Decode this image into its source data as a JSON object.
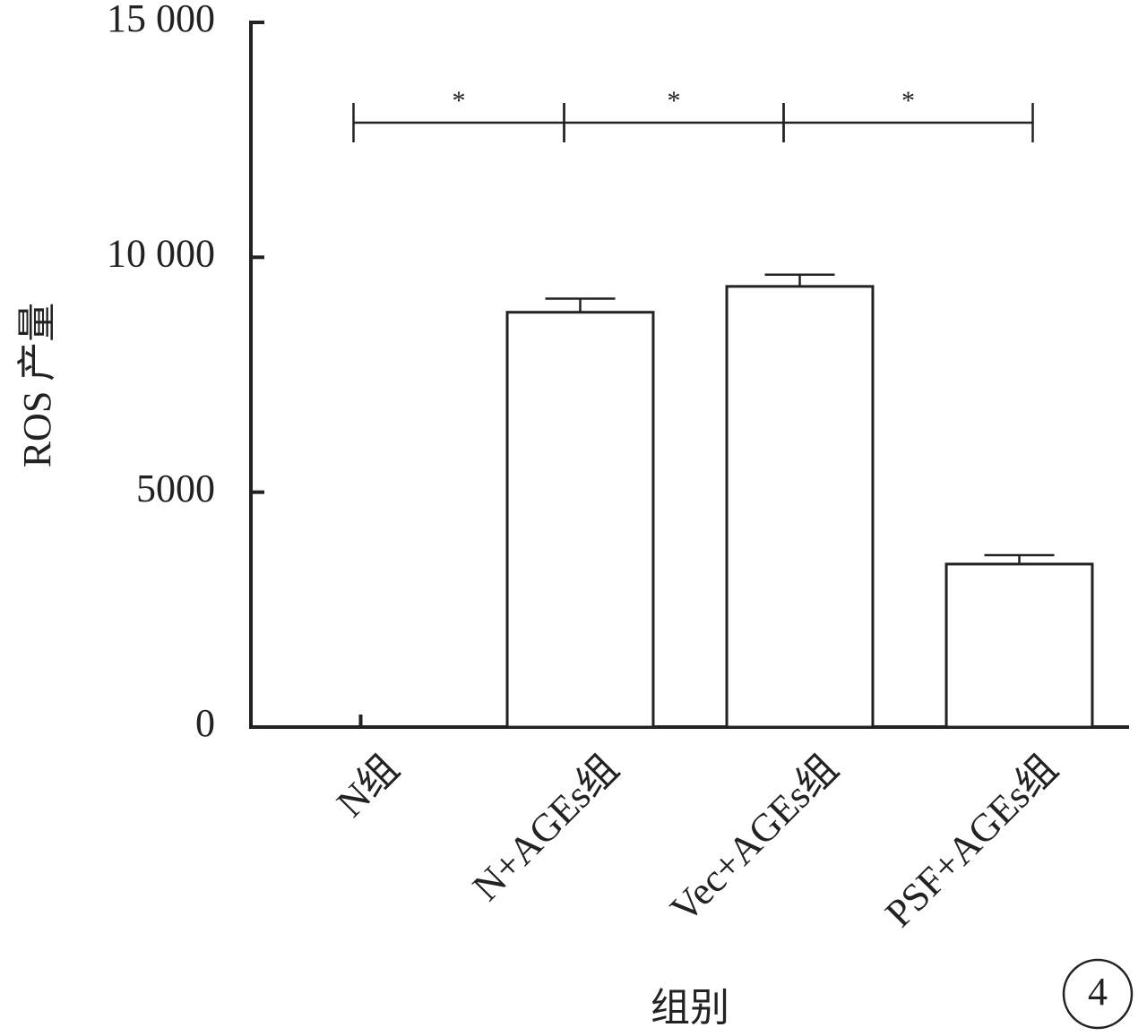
{
  "chart_data": {
    "type": "bar",
    "y_label": "ROS 产量",
    "x_label": "组别",
    "categories": [
      "N组",
      "N+AGEs组",
      "Vec+AGEs组",
      "PSF+AGEs组"
    ],
    "values": [
      0,
      8830,
      9380,
      3470
    ],
    "errors": [
      null,
      290,
      250,
      190
    ],
    "color": "#ffffff",
    "ylim": [
      0,
      15000
    ],
    "yticks": [
      0,
      5000,
      {
        "value": 10000,
        "label": "10 000"
      },
      {
        "value": 15000,
        "label": "15 000"
      }
    ],
    "grid": false,
    "annotations": [
      {
        "text": "*",
        "between": [
          "N组",
          "N+AGEs组"
        ]
      },
      {
        "text": "*",
        "between": [
          "N+AGEs组",
          "Vec+AGEs组"
        ]
      },
      {
        "text": "*",
        "between": [
          "Vec+AGEs组",
          "PSF+AGEs组"
        ]
      }
    ],
    "panel_label": "4"
  }
}
